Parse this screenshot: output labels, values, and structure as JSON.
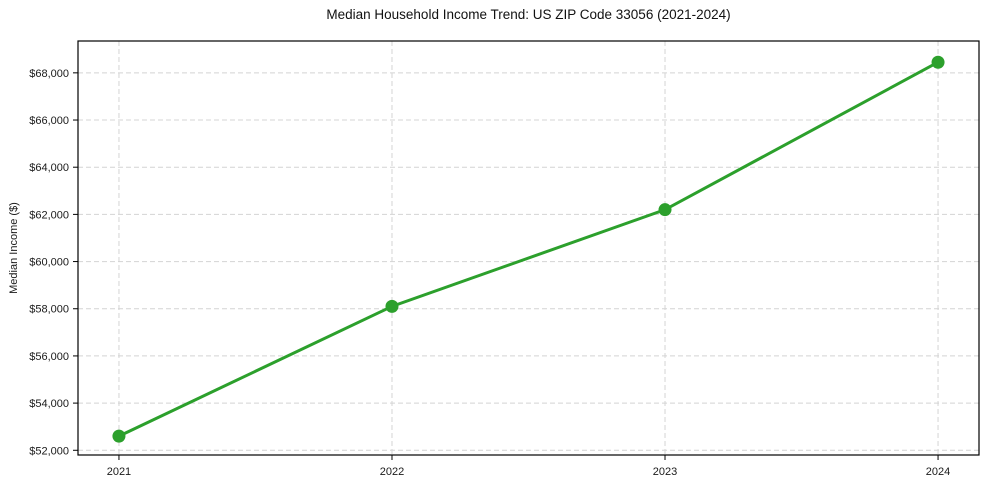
{
  "chart_data": {
    "type": "line",
    "title": "Median Household Income Trend: US ZIP Code 33056 (2021-2024)",
    "xlabel": "",
    "ylabel": "Median Income ($)",
    "categories": [
      "2021",
      "2022",
      "2023",
      "2024"
    ],
    "series": [
      {
        "name": "Median Household Income",
        "values": [
          52600,
          58100,
          62200,
          68450
        ],
        "color": "#2ca02c",
        "marker": "circle"
      }
    ],
    "ylim": [
      51800,
      69350
    ],
    "yticks": {
      "values": [
        52000,
        54000,
        56000,
        58000,
        60000,
        62000,
        64000,
        66000,
        68000
      ],
      "labels": [
        "$52,000",
        "$54,000",
        "$56,000",
        "$58,000",
        "$60,000",
        "$62,000",
        "$64,000",
        "$66,000",
        "$68,000"
      ]
    },
    "grid": true,
    "grid_style": "dashed",
    "legend": "none"
  },
  "colors": {
    "line": "#2ca02c",
    "grid": "#d4d4d4",
    "axis": "#000000",
    "background": "#ffffff",
    "text": "#1a1a1a"
  }
}
